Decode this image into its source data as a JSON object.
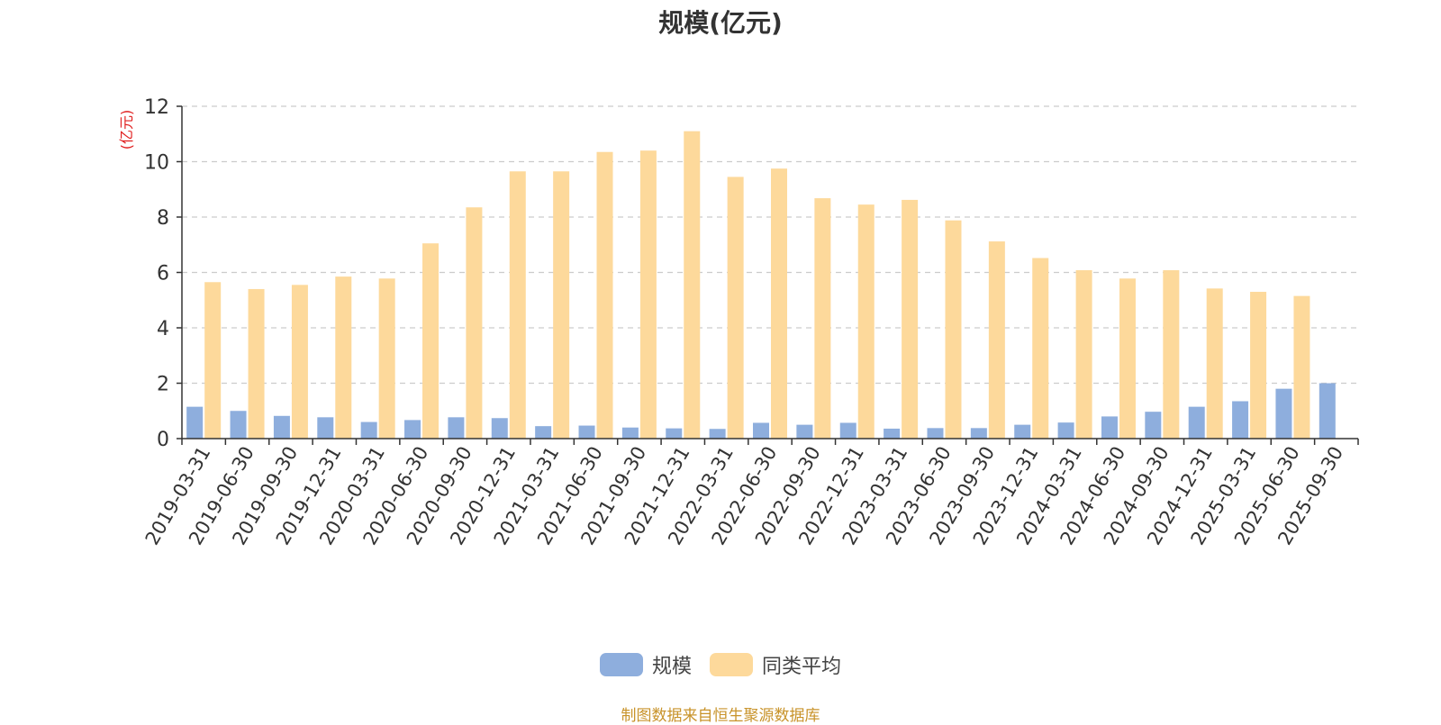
{
  "chart_data": {
    "type": "bar",
    "title": "规模(亿元)",
    "ylabel": "(亿元)",
    "xlabel": "",
    "ylim": [
      0,
      12
    ],
    "yticks": [
      0,
      2,
      4,
      6,
      8,
      10,
      12
    ],
    "grid": true,
    "legend_position": "bottom-center",
    "categories": [
      "2019-03-31",
      "2019-06-30",
      "2019-09-30",
      "2019-12-31",
      "2020-03-31",
      "2020-06-30",
      "2020-09-30",
      "2020-12-31",
      "2021-03-31",
      "2021-06-30",
      "2021-09-30",
      "2021-12-31",
      "2022-03-31",
      "2022-06-30",
      "2022-09-30",
      "2022-12-31",
      "2023-03-31",
      "2023-06-30",
      "2023-09-30",
      "2023-12-31",
      "2024-03-31",
      "2024-06-30",
      "2024-09-30",
      "2024-12-31",
      "2025-03-31",
      "2025-06-30",
      "2025-09-30"
    ],
    "series": [
      {
        "name": "规模",
        "color": "#8eaedd",
        "values": [
          1.15,
          1.0,
          0.82,
          0.77,
          0.6,
          0.67,
          0.77,
          0.74,
          0.45,
          0.47,
          0.4,
          0.37,
          0.35,
          0.57,
          0.5,
          0.57,
          0.36,
          0.38,
          0.38,
          0.5,
          0.58,
          0.8,
          0.97,
          1.15,
          1.35,
          1.8,
          2.0
        ]
      },
      {
        "name": "同类平均",
        "color": "#fdd99b",
        "values": [
          5.65,
          5.4,
          5.55,
          5.85,
          5.78,
          7.05,
          8.35,
          9.65,
          9.65,
          10.35,
          10.4,
          11.1,
          9.45,
          9.75,
          8.68,
          8.45,
          8.62,
          7.88,
          7.12,
          6.52,
          6.08,
          5.78,
          6.08,
          5.42,
          5.3,
          5.15,
          null
        ]
      }
    ]
  },
  "source_note": "制图数据来自恒生聚源数据库"
}
